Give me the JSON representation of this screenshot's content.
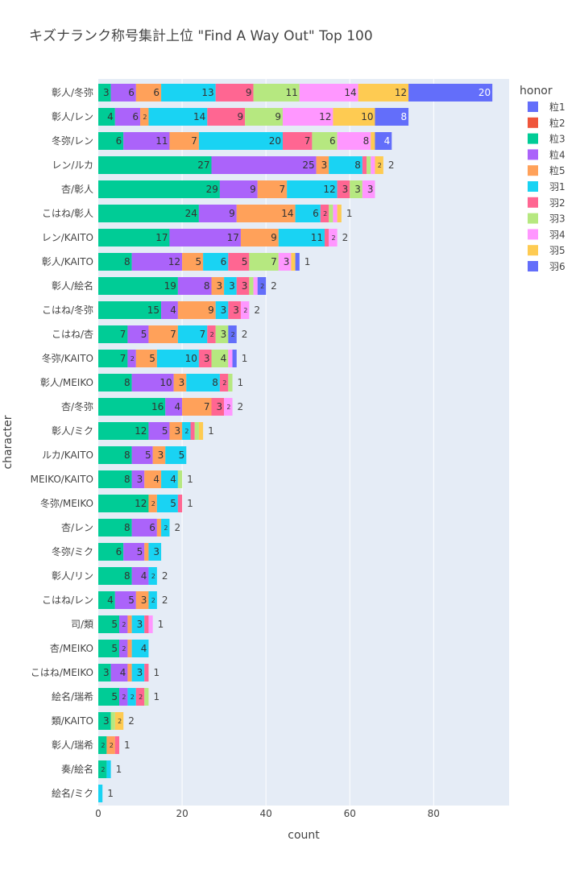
{
  "chart_data": {
    "type": "bar",
    "orientation": "horizontal",
    "barmode": "stack",
    "title": "キズナランク称号集計上位 \"Find A Way Out\" Top 100",
    "xlabel": "count",
    "ylabel": "character",
    "xlim": [
      0,
      98
    ],
    "xticks": [
      0,
      20,
      40,
      60,
      80
    ],
    "grid": true,
    "legend": {
      "title": "honor",
      "placement": "right"
    },
    "categories": [
      "彰人/冬弥",
      "彰人/レン",
      "冬弥/レン",
      "レン/ルカ",
      "杏/彰人",
      "こはね/彰人",
      "レン/KAITO",
      "彰人/KAITO",
      "彰人/絵名",
      "こはね/冬弥",
      "こはね/杏",
      "冬弥/KAITO",
      "彰人/MEIKO",
      "杏/冬弥",
      "彰人/ミク",
      "ルカ/KAITO",
      "MEIKO/KAITO",
      "冬弥/MEIKO",
      "杏/レン",
      "冬弥/ミク",
      "彰人/リン",
      "こはね/レン",
      "司/類",
      "杏/MEIKO",
      "こはね/MEIKO",
      "絵名/瑞希",
      "類/KAITO",
      "彰人/瑞希",
      "奏/絵名",
      "絵名/ミク"
    ],
    "series": [
      {
        "name": "粒1",
        "color": "#636efa",
        "values": [
          0,
          0,
          0,
          0,
          0,
          0,
          0,
          0,
          0,
          0,
          0,
          0,
          0,
          0,
          0,
          0,
          0,
          0,
          0,
          0,
          0,
          0,
          0,
          0,
          0,
          0,
          0,
          0,
          0,
          0
        ]
      },
      {
        "name": "粒2",
        "color": "#EF553B",
        "values": [
          0,
          0,
          0,
          0,
          0,
          0,
          0,
          0,
          0,
          0,
          0,
          0,
          0,
          0,
          0,
          0,
          0,
          0,
          0,
          0,
          0,
          0,
          0,
          0,
          0,
          0,
          0,
          0,
          0,
          0
        ]
      },
      {
        "name": "粒3",
        "color": "#00cc96",
        "values": [
          3,
          4,
          6,
          27,
          29,
          24,
          17,
          8,
          19,
          15,
          7,
          7,
          8,
          16,
          12,
          8,
          8,
          12,
          8,
          6,
          8,
          4,
          5,
          5,
          3,
          5,
          3,
          2,
          2,
          0
        ]
      },
      {
        "name": "粒4",
        "color": "#ab63fa",
        "values": [
          6,
          6,
          11,
          25,
          9,
          9,
          17,
          12,
          8,
          4,
          5,
          2,
          10,
          4,
          5,
          5,
          3,
          0,
          6,
          5,
          4,
          5,
          2,
          2,
          4,
          2,
          0,
          0,
          0,
          0
        ]
      },
      {
        "name": "粒5",
        "color": "#FFA15A",
        "values": [
          6,
          2,
          7,
          3,
          7,
          14,
          9,
          5,
          3,
          9,
          7,
          5,
          3,
          7,
          3,
          3,
          4,
          2,
          1,
          1,
          0,
          3,
          1,
          1,
          1,
          0,
          0,
          2,
          0,
          0
        ]
      },
      {
        "name": "羽1",
        "color": "#19d3f3",
        "values": [
          13,
          14,
          20,
          8,
          12,
          6,
          11,
          6,
          3,
          3,
          7,
          10,
          8,
          0,
          2,
          5,
          4,
          5,
          2,
          3,
          2,
          2,
          3,
          4,
          3,
          2,
          0,
          0,
          1,
          1
        ]
      },
      {
        "name": "羽2",
        "color": "#FF6692",
        "values": [
          9,
          9,
          7,
          1,
          3,
          2,
          1,
          5,
          3,
          3,
          2,
          3,
          2,
          3,
          1,
          0,
          0,
          1,
          0,
          0,
          0,
          0,
          1,
          0,
          1,
          2,
          0,
          1,
          0,
          0
        ]
      },
      {
        "name": "羽3",
        "color": "#B6E880",
        "values": [
          11,
          9,
          6,
          1,
          3,
          1,
          0,
          7,
          1,
          0,
          3,
          4,
          1,
          0,
          1,
          0,
          1,
          0,
          0,
          0,
          0,
          0,
          0,
          0,
          0,
          1,
          1,
          0,
          0,
          0
        ]
      },
      {
        "name": "羽4",
        "color": "#FF97FF",
        "values": [
          14,
          12,
          8,
          1,
          3,
          1,
          2,
          3,
          1,
          2,
          0,
          1,
          0,
          2,
          0,
          0,
          0,
          0,
          0,
          0,
          0,
          0,
          1,
          0,
          0,
          0,
          0,
          0,
          0,
          0
        ]
      },
      {
        "name": "羽5",
        "color": "#FECB52",
        "values": [
          12,
          10,
          1,
          2,
          0,
          1,
          0,
          1,
          0,
          0,
          0,
          0,
          0,
          0,
          1,
          0,
          0,
          0,
          0,
          0,
          0,
          0,
          0,
          0,
          0,
          0,
          2,
          0,
          0,
          0
        ]
      },
      {
        "name": "羽6",
        "color": "#636efa",
        "values": [
          20,
          8,
          4,
          0,
          0,
          0,
          0,
          1,
          2,
          0,
          2,
          1,
          0,
          0,
          0,
          0,
          0,
          0,
          0,
          0,
          0,
          0,
          0,
          0,
          0,
          0,
          0,
          0,
          0,
          0
        ]
      }
    ],
    "outside_labels": [
      null,
      null,
      null,
      "2",
      null,
      "1",
      "2",
      "1",
      "2",
      "2",
      "2",
      "1",
      "1",
      "2",
      "1",
      null,
      "1",
      "1",
      "2",
      null,
      "2",
      "2",
      "1",
      null,
      "1",
      "1",
      "2",
      "1",
      "1",
      "1"
    ]
  }
}
